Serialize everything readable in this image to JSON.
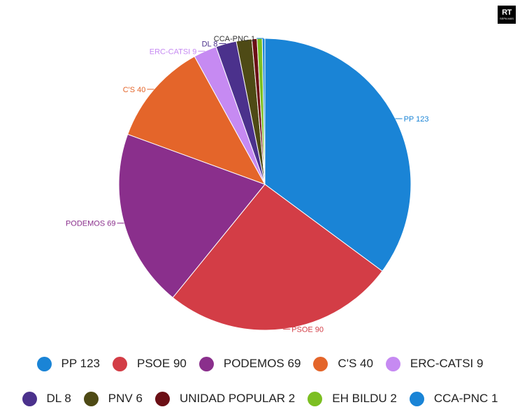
{
  "logo": {
    "main": "RT",
    "sub": "SEPA MÁS"
  },
  "chart_data": {
    "type": "pie",
    "title": "",
    "slices": [
      {
        "name": "PP",
        "value": 123,
        "label": "PP 123",
        "legend": "PP 123",
        "color": "#1a84d6"
      },
      {
        "name": "PSOE",
        "value": 90,
        "label": "PSOE 90",
        "legend": "PSOE 90",
        "color": "#d33d46"
      },
      {
        "name": "PODEMOS",
        "value": 69,
        "label": "PODEMOS 69",
        "legend": "PODEMOS 69",
        "color": "#8a2f8c"
      },
      {
        "name": "C'S",
        "value": 40,
        "label": "C'S 40",
        "legend": "C'S 40",
        "color": "#e4652a"
      },
      {
        "name": "ERC-CATSI",
        "value": 9,
        "label": "ERC-CATSI 9",
        "legend": "ERC-CATSI 9",
        "color": "#c68af2"
      },
      {
        "name": "DL",
        "value": 8,
        "label": "DL 8",
        "legend": "DL 8",
        "color": "#4b318c"
      },
      {
        "name": "PNV",
        "value": 6,
        "label": "",
        "legend": "PNV 6",
        "color": "#4e4a15"
      },
      {
        "name": "UNIDAD POPULAR",
        "value": 2,
        "label": "",
        "legend": "UNIDAD POPULAR 2",
        "color": "#6b0f15"
      },
      {
        "name": "EH BILDU",
        "value": 2,
        "label": "",
        "legend": "EH BILDU 2",
        "color": "#7cbf22"
      },
      {
        "name": "CCA-PNC",
        "value": 1,
        "label": "CCA-PNC 1",
        "legend": "CCA-PNC 1",
        "color": "#1a84d6"
      }
    ],
    "legend_placement": "bottom"
  }
}
